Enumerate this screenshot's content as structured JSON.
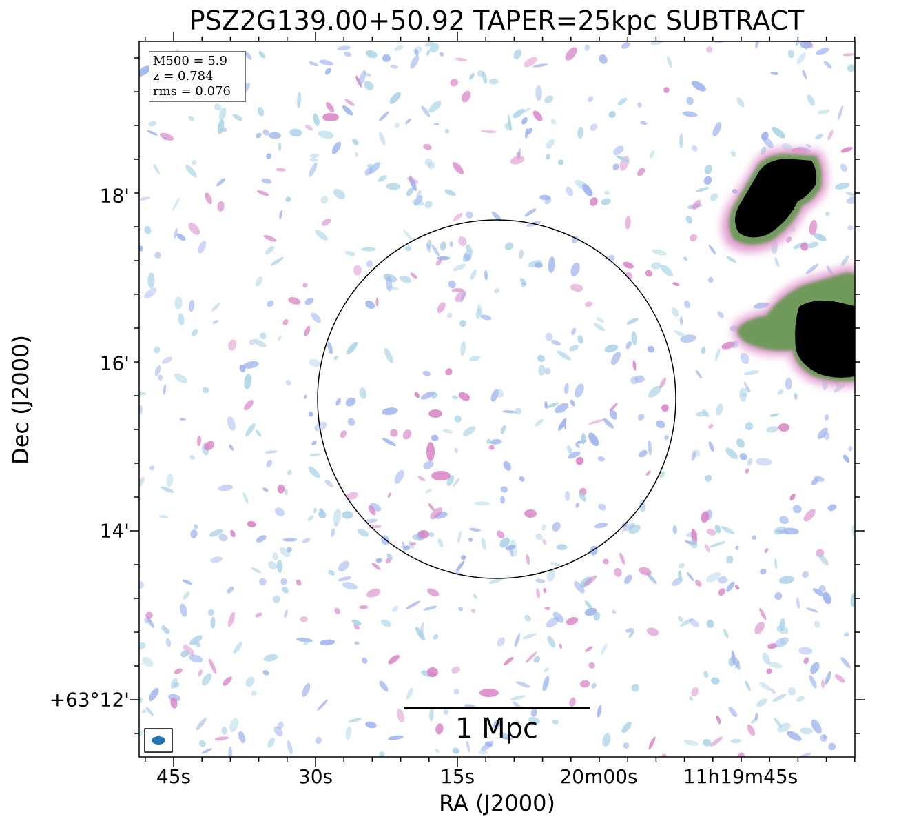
{
  "title": "PSZ2G139.00+50.92 TAPER=25kpc SUBTRACT",
  "info_box": {
    "m500": "M500 = 5.9",
    "z": "z = 0.784",
    "rms": "rms = 0.076"
  },
  "scale_bar_label": "1 Mpc",
  "colors": {
    "faint_emission": "#a9d3e6",
    "medium_emission": "#9db3ee",
    "pink_emission": "#d883c6",
    "green_rim": "#6f9a5c",
    "bright_source": "#000000",
    "beam": "#1f77b4"
  },
  "chart_data": {
    "type": "heatmap",
    "description_type": "radio continuum map (RA/Dec sky image)",
    "title": "PSZ2G139.00+50.92 TAPER=25kpc SUBTRACT",
    "xlabel": "RA (J2000)",
    "ylabel": "Dec (J2000)",
    "x_tick_labels": [
      "45s",
      "30s",
      "15s",
      "20m00s",
      "11h19m45s"
    ],
    "y_tick_labels": [
      "+63°12'",
      "14'",
      "16'",
      "18'"
    ],
    "annotations": [
      "M500 = 5.9",
      "z = 0.784",
      "rms = 0.076",
      "1 Mpc"
    ],
    "overlays": {
      "circle": "cluster region circle centred near map centre",
      "beam_ellipse": "lower-left corner",
      "scale_bar": "bottom centre"
    },
    "bright_sources": [
      {
        "location": "upper-right edge"
      },
      {
        "location": "right edge, middle"
      }
    ]
  }
}
